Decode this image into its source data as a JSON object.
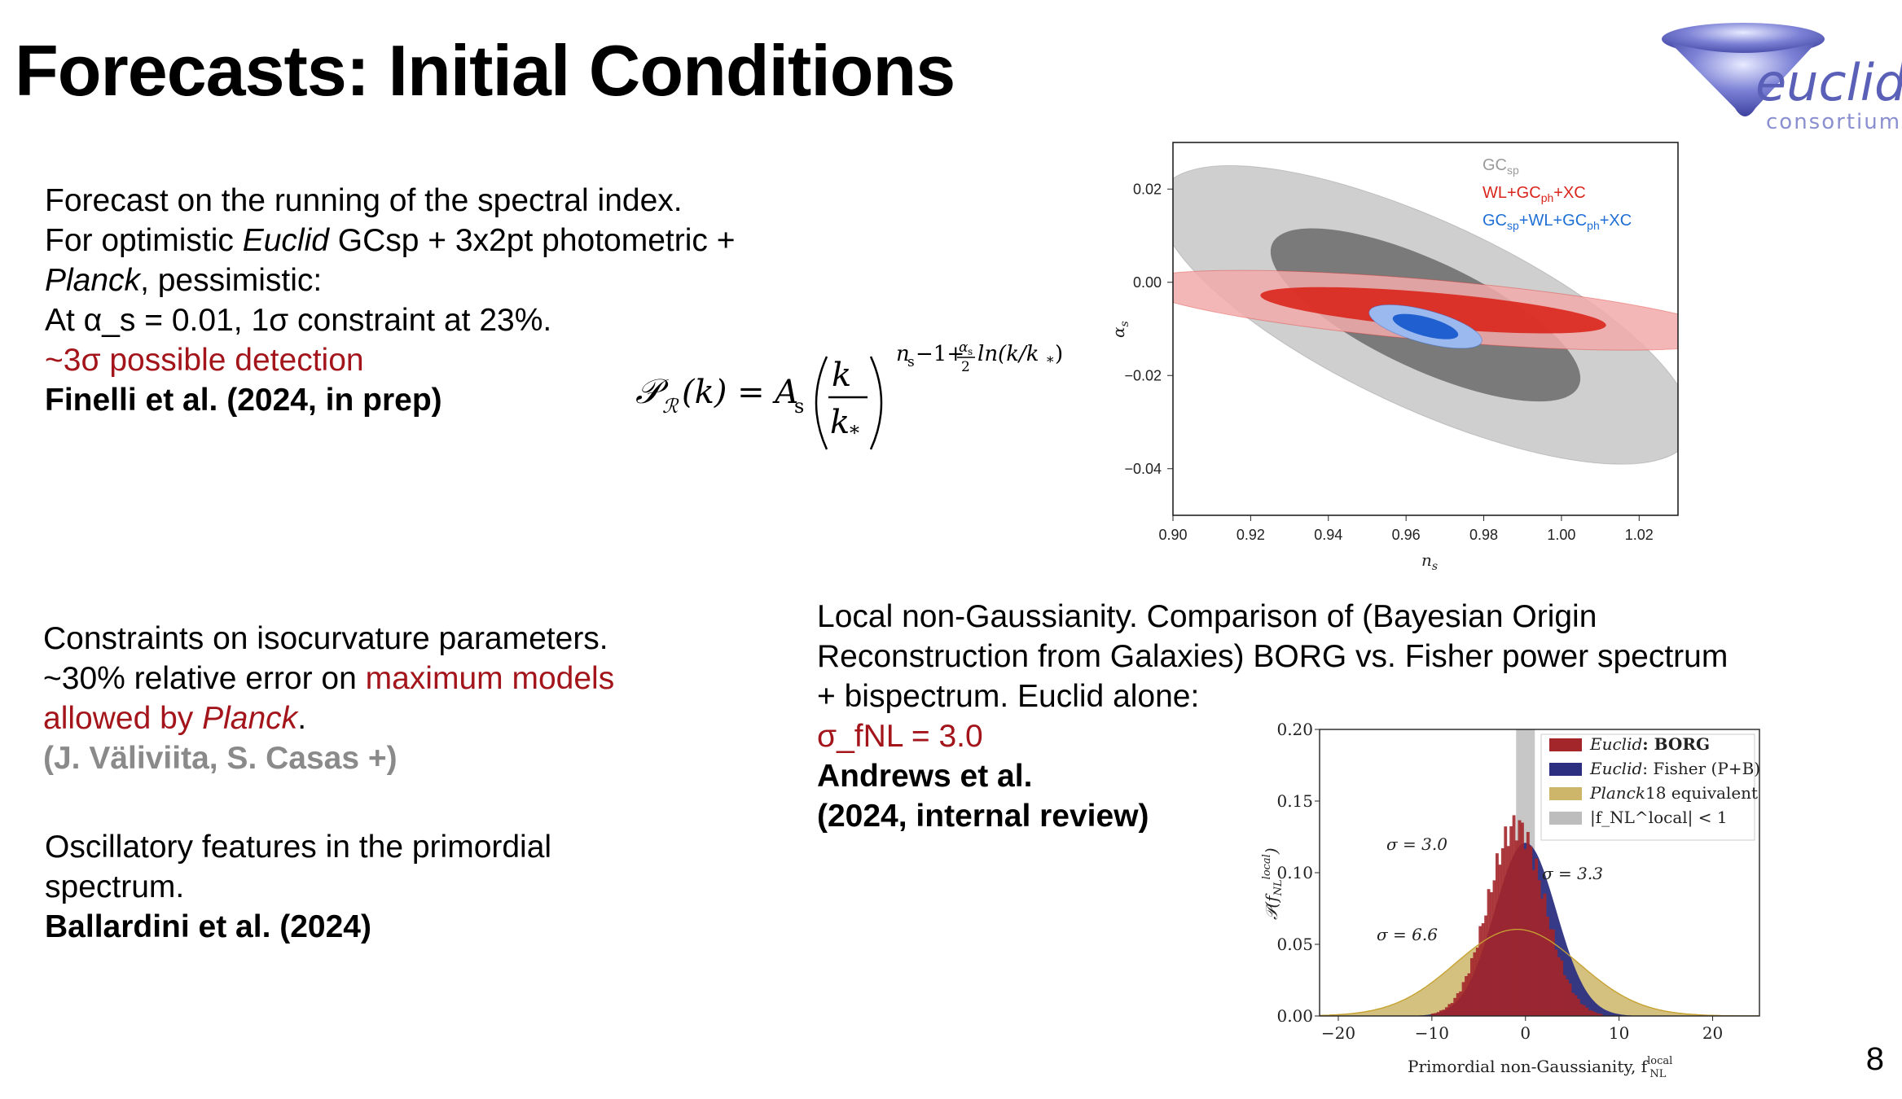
{
  "slide": {
    "title": "Forecasts: Initial Conditions",
    "page_number": "8",
    "logo": {
      "text": "euclid",
      "subtext": "consortium"
    }
  },
  "running": {
    "line1": "Forecast on the running of the spectral index.",
    "line2_pre": "For optimistic ",
    "line2_em": "Euclid",
    "line2_post": " GCsp + 3x2pt photometric +",
    "line3_em": "Planck",
    "line3_post": ", pessimistic:",
    "line4": "At α_s = 0.01, 1σ constraint at 23%.",
    "line5": "~3σ possible detection",
    "citation": "Finelli et al. (2024, in prep)"
  },
  "formula": {
    "lhs": "𝒫",
    "lhs_sub": "ℛ",
    "lhs_arg": "(k) = A",
    "lhs_arg_sub": "s",
    "frac_num": "k",
    "frac_den": "k",
    "frac_den_sub": "*",
    "exp_a": "n",
    "exp_a_sub": "s",
    "exp_b": "−1+",
    "exp_frac_num": "α",
    "exp_frac_num_sub": "s",
    "exp_frac_den": "2",
    "exp_c": " ln(k/k",
    "exp_c_sub": "*",
    "exp_d": ")"
  },
  "isocurvature": {
    "line1": "Constraints on isocurvature parameters.",
    "line2_pre": "~30% relative error on ",
    "line2_red": "maximum models",
    "line3_red_pre": "allowed by ",
    "line3_red_em": "Planck",
    "line3_post": ".",
    "citation": "(J. Väliviita, S. Casas +)"
  },
  "oscillatory": {
    "line1": "Oscillatory features in the primordial",
    "line2": "spectrum.",
    "citation": "Ballardini et al. (2024)"
  },
  "nongauss": {
    "line1": "Local non-Gaussianity. Comparison of (Bayesian Origin",
    "line2": "Reconstruction from Galaxies) BORG vs. Fisher power spectrum",
    "line3": "+ bispectrum. Euclid alone:",
    "line4": "σ_fNL = 3.0",
    "citation1": "Andrews et al.",
    "citation2": "(2024, internal review)"
  },
  "colors": {
    "accent_red": "#a3151b",
    "grey_text": "#8a8a8a",
    "logo_blue": "#5a5fb8"
  },
  "chart_data": [
    {
      "type": "contour",
      "xlabel": "n_s",
      "ylabel": "α_s",
      "xlim": [
        0.9,
        1.03
      ],
      "ylim": [
        -0.05,
        0.03
      ],
      "xticks": [
        "0.90",
        "0.92",
        "0.94",
        "0.96",
        "0.98",
        "1.00",
        "1.02"
      ],
      "yticks": [
        "0.02",
        "0.00",
        "−0.02",
        "−0.04"
      ],
      "legend": [
        {
          "label": "GC",
          "sub": "sp",
          "color": "#9a9a9a"
        },
        {
          "label": "WL+GC",
          "sub": "ph",
          "post": "+XC",
          "color": "#d9261c"
        },
        {
          "label": "GC",
          "sub": "sp",
          "post": "+WL+GC",
          "sub2": "ph",
          "post2": "+XC",
          "color": "#1f6fd6"
        }
      ],
      "contours": [
        {
          "name": "GCsp",
          "cx": 0.965,
          "cy": -0.007,
          "rx": 0.075,
          "ry": 0.02,
          "angle": 25,
          "color_outer": "#cfcfcf",
          "color_inner": "#7a7a7a"
        },
        {
          "name": "WL+GCph+XC",
          "cx": 0.967,
          "cy": -0.006,
          "rx": 0.077,
          "ry": 0.0065,
          "angle": 5,
          "color_outer": "#f2aaaa",
          "color_inner": "#d9261c"
        },
        {
          "name": "GCsp+WL+GCph+XC",
          "cx": 0.965,
          "cy": -0.0095,
          "rx": 0.015,
          "ry": 0.0035,
          "angle": 15,
          "color_outer": "#9bb9ee",
          "color_inner": "#1f5fd0"
        }
      ]
    },
    {
      "type": "histogram",
      "xlabel": "Primordial non-Gaussianity, f",
      "xlabel_sup": "local",
      "xlabel_sub": "NL",
      "ylabel": "P(f_NL^local)",
      "xlim": [
        -22,
        25
      ],
      "ylim": [
        0.0,
        0.2
      ],
      "xticks": [
        "−20",
        "−10",
        "0",
        "10",
        "20"
      ],
      "yticks": [
        "0.00",
        "0.05",
        "0.10",
        "0.15",
        "0.20"
      ],
      "series": [
        {
          "name": "Euclid: BORG",
          "label_em": "Euclid",
          "label_rest": ": BORG",
          "mean": -1.0,
          "sigma": 3.0,
          "color": "#a3262a"
        },
        {
          "name": "Euclid: Fisher (P+B)",
          "label_em": "Euclid",
          "label_rest": ": Fisher (P+B)",
          "mean": 0.0,
          "sigma": 3.3,
          "color": "#2c2f80"
        },
        {
          "name": "Planck18 equivalent",
          "label_em": "Planck",
          "label_rest": "18 equivalent",
          "mean": -0.9,
          "sigma": 6.6,
          "color": "#cdb66a"
        },
        {
          "name": "|f_NL^local| < 1",
          "label_em": "",
          "label_rest": "|f_NL^local| < 1",
          "range": [
            -1,
            1
          ],
          "color": "#bdbdbd"
        }
      ],
      "annotations": [
        {
          "text": "σ = 3.0",
          "color": "#b3262a"
        },
        {
          "text": "σ = 3.3",
          "color": "#2c2f80"
        },
        {
          "text": "σ = 6.6",
          "color": "#b08a10"
        }
      ]
    }
  ]
}
